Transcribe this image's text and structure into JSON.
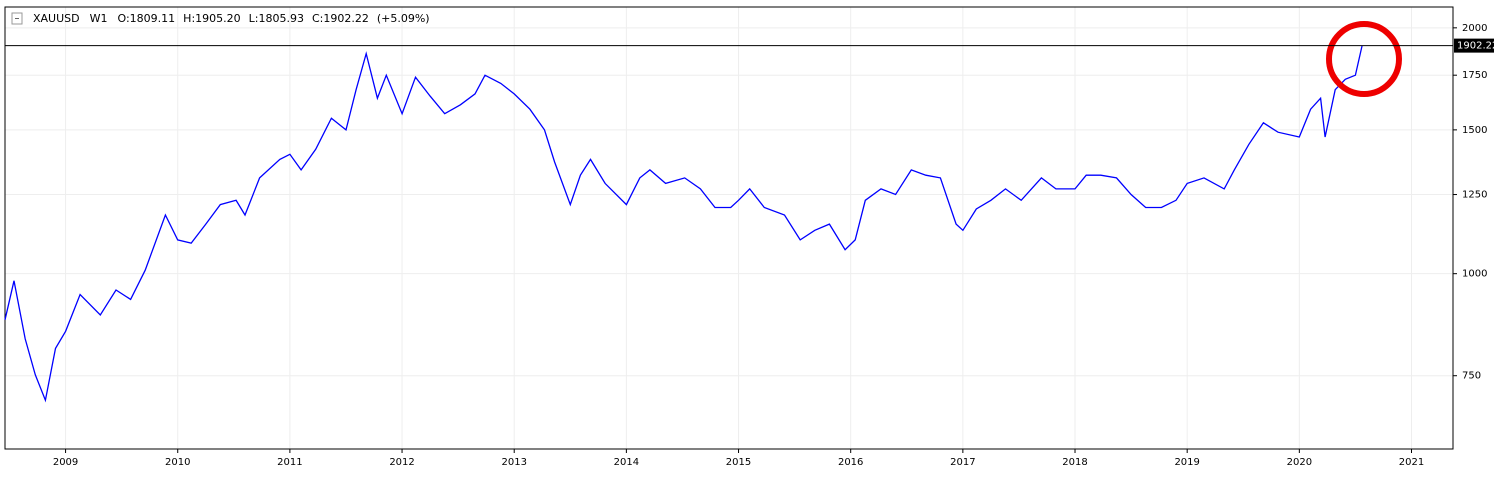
{
  "chart_data": {
    "type": "line",
    "header": [
      "XAUUSD",
      "W1",
      "O:1809.11",
      "H:1905.20",
      "L:1805.93",
      "C:1902.22",
      "(+5.09%)"
    ],
    "x": [
      2008.46,
      2008.54,
      2008.64,
      2008.73,
      2008.82,
      2008.91,
      2009.0,
      2009.13,
      2009.31,
      2009.45,
      2009.58,
      2009.71,
      2009.89,
      2010.0,
      2010.12,
      2010.25,
      2010.38,
      2010.52,
      2010.6,
      2010.73,
      2010.91,
      2011.0,
      2011.1,
      2011.23,
      2011.37,
      2011.5,
      2011.59,
      2011.68,
      2011.78,
      2011.86,
      2012.0,
      2012.12,
      2012.25,
      2012.38,
      2012.52,
      2012.65,
      2012.74,
      2012.88,
      2013.0,
      2013.14,
      2013.27,
      2013.36,
      2013.5,
      2013.59,
      2013.68,
      2013.81,
      2014.0,
      2014.12,
      2014.21,
      2014.35,
      2014.52,
      2014.66,
      2014.79,
      2014.93,
      2015.0,
      2015.1,
      2015.23,
      2015.41,
      2015.55,
      2015.68,
      2015.81,
      2015.95,
      2016.04,
      2016.13,
      2016.27,
      2016.4,
      2016.54,
      2016.67,
      2016.8,
      2016.94,
      2017.0,
      2017.12,
      2017.25,
      2017.38,
      2017.52,
      2017.7,
      2017.83,
      2018.0,
      2018.1,
      2018.23,
      2018.37,
      2018.5,
      2018.63,
      2018.77,
      2018.9,
      2019.0,
      2019.15,
      2019.33,
      2019.42,
      2019.55,
      2019.68,
      2019.81,
      2020.0,
      2020.1,
      2020.19,
      2020.23,
      2020.32,
      2020.41,
      2020.5,
      2020.56
    ],
    "series": [
      {
        "name": "XAUUSD",
        "color": "#0000ff",
        "values": [
          878,
          980,
          832,
          752,
          700,
          810,
          850,
          943,
          890,
          955,
          930,
          1010,
          1180,
          1100,
          1090,
          1150,
          1215,
          1230,
          1180,
          1310,
          1380,
          1400,
          1340,
          1420,
          1550,
          1500,
          1680,
          1860,
          1640,
          1750,
          1570,
          1740,
          1650,
          1570,
          1610,
          1660,
          1750,
          1710,
          1660,
          1590,
          1500,
          1370,
          1215,
          1320,
          1380,
          1290,
          1215,
          1310,
          1340,
          1290,
          1310,
          1270,
          1205,
          1205,
          1230,
          1270,
          1205,
          1180,
          1100,
          1130,
          1150,
          1070,
          1100,
          1230,
          1270,
          1250,
          1340,
          1320,
          1310,
          1150,
          1130,
          1200,
          1230,
          1270,
          1230,
          1310,
          1270,
          1270,
          1320,
          1320,
          1310,
          1250,
          1205,
          1205,
          1230,
          1290,
          1310,
          1270,
          1340,
          1440,
          1530,
          1490,
          1470,
          1590,
          1640,
          1470,
          1680,
          1730,
          1750,
          1902.22
        ]
      }
    ],
    "price_line": 1902.22,
    "log_scale": true,
    "grid": true,
    "xlim": [
      2008.46,
      2021.37
    ],
    "xticks": [
      2009,
      2010,
      2011,
      2012,
      2013,
      2014,
      2015,
      2016,
      2017,
      2018,
      2019,
      2020,
      2021
    ],
    "ylim": [
      610,
      2121
    ],
    "yticks": [
      750,
      1000,
      1250,
      1500,
      1750,
      2000
    ]
  }
}
